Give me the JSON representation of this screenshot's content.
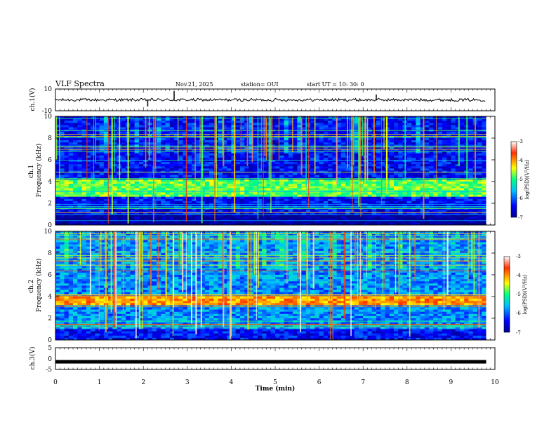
{
  "header": {
    "title": "VLF Spectra",
    "date": "Nov.21, 2025",
    "station": "station= OUI",
    "start": "start  UT  =   10: 30: 0"
  },
  "chart_data": [
    {
      "panel": "ch1-waveform",
      "type": "line",
      "ylabel": "ch.1(V)",
      "ylim": [
        -10,
        10
      ],
      "yticks": [
        "10",
        "-10"
      ],
      "baseline": 0,
      "spikes": [
        {
          "t": 2.1,
          "v": -6
        },
        {
          "t": 2.7,
          "v": 8
        },
        {
          "t": 7.3,
          "v": 5
        }
      ]
    },
    {
      "panel": "ch1-spectrogram",
      "type": "heatmap",
      "ylabel": "ch.1\nFrequency (kHz)",
      "ylim": [
        0,
        10
      ],
      "yticks": [
        "0",
        "2",
        "4",
        "6",
        "8",
        "10"
      ],
      "colorbar": {
        "label": "log(PSD)(V²/Hz)",
        "range": [
          -7,
          -3
        ],
        "ticks": [
          "-3",
          "-4",
          "-5",
          "-6",
          "-7"
        ]
      },
      "band_khz": [
        2.6,
        4.2
      ],
      "band_level": -4.8,
      "background_level": -6.4
    },
    {
      "panel": "ch2-spectrogram",
      "type": "heatmap",
      "ylabel": "ch.2\nFrequency (kHz)",
      "ylim": [
        0,
        10
      ],
      "yticks": [
        "0",
        "2",
        "4",
        "6",
        "8",
        "10"
      ],
      "colorbar": {
        "label": "log(PSD)(V²/Hz)",
        "range": [
          -7,
          -3
        ],
        "ticks": [
          "-3",
          "-4",
          "-5",
          "-6",
          "-7"
        ]
      },
      "band_khz": [
        3.2,
        4.0
      ],
      "band_level": -4.0,
      "background_level": -5.8
    },
    {
      "panel": "ch3-waveform",
      "type": "line",
      "ylabel": "ch.3(V)",
      "ylim": [
        -5,
        5
      ],
      "yticks": [
        "5",
        "0",
        "-5"
      ],
      "level": -1.5
    }
  ],
  "xaxis": {
    "label": "Time  (min)",
    "range": [
      0,
      10
    ],
    "data_end": 9.8,
    "ticks": [
      "0",
      "1",
      "2",
      "3",
      "4",
      "5",
      "6",
      "7",
      "8",
      "9",
      "10"
    ]
  }
}
